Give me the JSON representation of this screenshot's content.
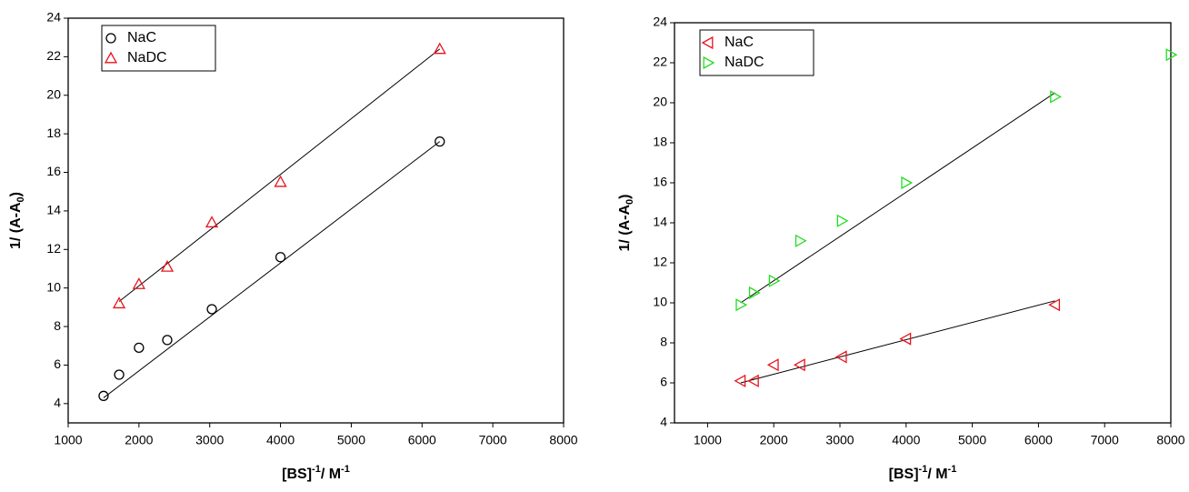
{
  "chart_data": [
    {
      "type": "scatter",
      "xlabel": [
        "[BS]",
        "-1",
        "/ M",
        "-1"
      ],
      "ylabel": [
        "1/ (A-A",
        "0",
        ")"
      ],
      "xlim": [
        1000,
        8000
      ],
      "xticks": [
        1000,
        2000,
        3000,
        4000,
        5000,
        6000,
        7000,
        8000
      ],
      "ylim": [
        3,
        24
      ],
      "yticks": [
        4,
        6,
        8,
        10,
        12,
        14,
        16,
        18,
        20,
        22,
        24
      ],
      "legend": "top-left",
      "series": [
        {
          "name": "NaC",
          "color": "#000000",
          "marker": "circle",
          "x": [
            1500,
            1720,
            2000,
            2400,
            3030,
            4000,
            6250
          ],
          "values": [
            4.4,
            5.5,
            6.9,
            7.3,
            8.9,
            11.6,
            17.6
          ],
          "fit": {
            "x": [
              1500,
              6250
            ],
            "y": [
              4.3,
              17.6
            ]
          }
        },
        {
          "name": "NaDC",
          "color": "#e8141c",
          "marker": "triangle-up",
          "x": [
            1720,
            2000,
            2400,
            3030,
            4000,
            6250
          ],
          "values": [
            9.2,
            10.2,
            11.1,
            13.4,
            15.5,
            22.4
          ],
          "fit": {
            "x": [
              1720,
              6250
            ],
            "y": [
              9.3,
              22.4
            ]
          }
        }
      ]
    },
    {
      "type": "scatter",
      "xlabel": [
        "[BS]",
        "-1",
        "/ M",
        "-1"
      ],
      "ylabel": [
        "1/ (A-A",
        "0",
        ")"
      ],
      "xlim": [
        500,
        8000
      ],
      "xticks": [
        1000,
        2000,
        3000,
        4000,
        5000,
        6000,
        7000,
        8000
      ],
      "ylim": [
        4,
        24
      ],
      "yticks": [
        4,
        6,
        8,
        10,
        12,
        14,
        16,
        18,
        20,
        22,
        24
      ],
      "legend": "top-left",
      "series": [
        {
          "name": "NaC",
          "color": "#e8141c",
          "marker": "triangle-left",
          "x": [
            1500,
            1700,
            2000,
            2400,
            3030,
            4000,
            6250
          ],
          "values": [
            6.1,
            6.1,
            6.9,
            6.9,
            7.3,
            8.2,
            9.9
          ],
          "fit": {
            "x": [
              1500,
              6250
            ],
            "y": [
              6.0,
              10.1
            ]
          }
        },
        {
          "name": "NaDC",
          "color": "#22dd22",
          "marker": "triangle-right",
          "x": [
            1500,
            1700,
            2000,
            2400,
            3030,
            4000,
            6250,
            8000
          ],
          "values": [
            9.9,
            10.5,
            11.1,
            13.1,
            14.1,
            16.0,
            20.3,
            22.4
          ],
          "fit": {
            "x": [
              1500,
              6250
            ],
            "y": [
              10.0,
              20.5
            ]
          }
        }
      ]
    }
  ]
}
